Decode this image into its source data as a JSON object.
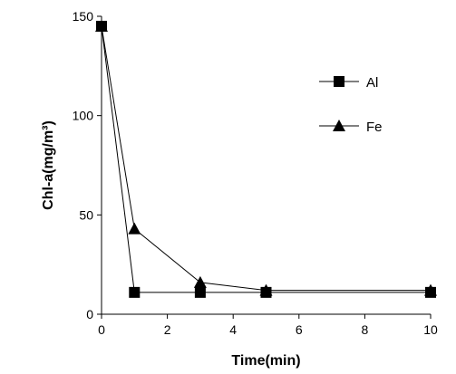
{
  "chart_data": {
    "type": "line",
    "title": "",
    "xlabel": "Time(min)",
    "ylabel": "Chl-a(mg/m³)",
    "xlim": [
      0,
      10
    ],
    "ylim": [
      0,
      150
    ],
    "xticks": [
      0,
      2,
      4,
      6,
      8,
      10
    ],
    "yticks": [
      0,
      50,
      100,
      150
    ],
    "grid": false,
    "legend_position": "right",
    "series": [
      {
        "name": "Al",
        "marker": "square",
        "x": [
          0,
          1,
          3,
          5,
          10
        ],
        "y": [
          145,
          11,
          11,
          11,
          11
        ]
      },
      {
        "name": "Fe",
        "marker": "triangle",
        "x": [
          0,
          1,
          3,
          5,
          10
        ],
        "y": [
          145,
          43,
          16,
          12,
          12
        ]
      }
    ]
  }
}
